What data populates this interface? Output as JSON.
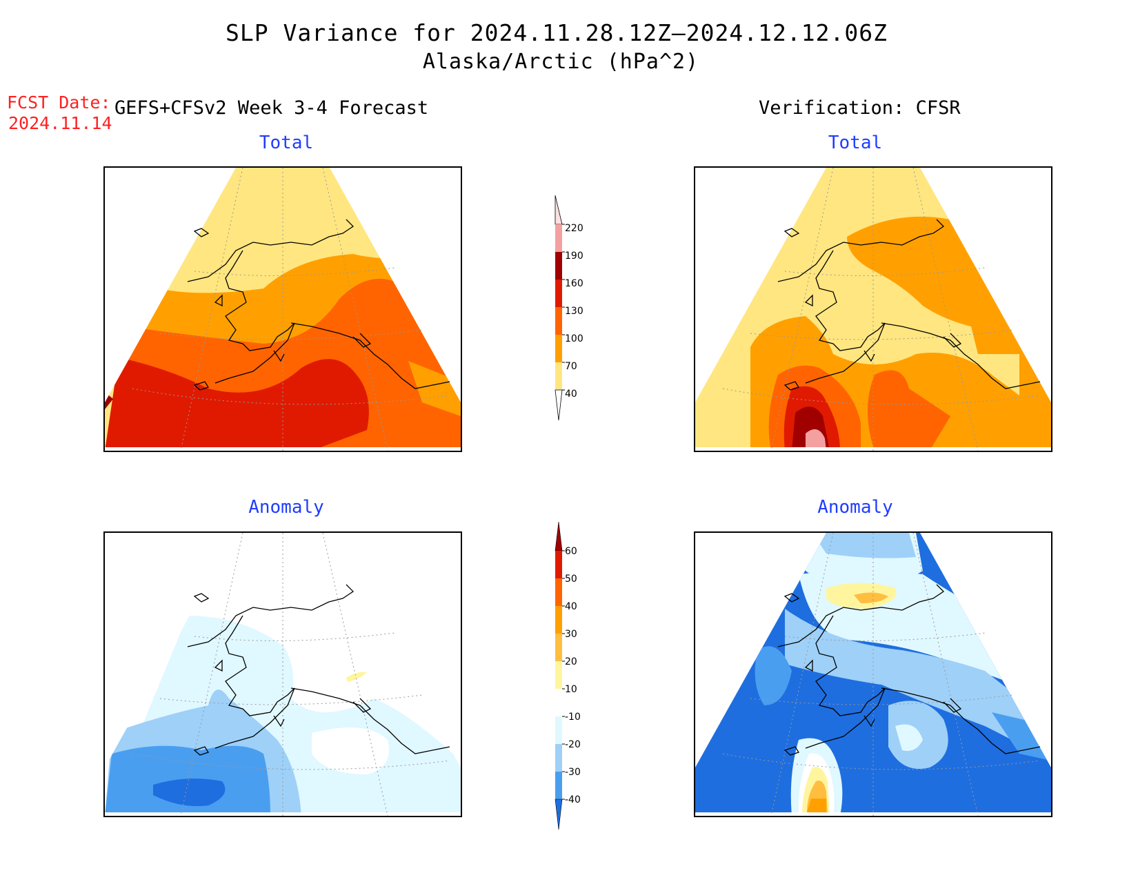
{
  "title": {
    "line1": "SLP Variance for 2024.11.28.12Z–2024.12.12.06Z",
    "line2": "Alaska/Arctic (hPa^2)"
  },
  "forecast_date": {
    "label": "FCST Date:",
    "value": "2024.11.14"
  },
  "headers": {
    "left": "GEFS+CFSv2 Week 3-4 Forecast",
    "right": "Verification: CFSR"
  },
  "panels": {
    "top_left": {
      "title": "Total"
    },
    "top_right": {
      "title": "Total"
    },
    "bottom_left": {
      "title": "Anomaly"
    },
    "bottom_right": {
      "title": "Anomaly"
    }
  },
  "colorbars": {
    "total": {
      "ticks": [
        "220",
        "190",
        "160",
        "130",
        "100",
        "70",
        "40"
      ],
      "colors": [
        "#fde0e0",
        "#f4a0a0",
        "#a00000",
        "#e01a00",
        "#ff6400",
        "#ffa000",
        "#ffe680"
      ]
    },
    "anomaly": {
      "ticks": [
        "60",
        "50",
        "40",
        "30",
        "20",
        "10",
        "-10",
        "-20",
        "-30",
        "-40"
      ],
      "colors": [
        "#a00000",
        "#e01a00",
        "#ff6400",
        "#ffa000",
        "#ffbe40",
        "#fff59e",
        "#ffffff",
        "#e0f8ff",
        "#9ed0f8",
        "#4a9ef0",
        "#1e6ee0"
      ]
    }
  },
  "colors": {
    "total_40_70": "#ffe680",
    "total_70_100": "#ffa000",
    "total_100_130": "#ff6400",
    "total_130_160": "#e01a00",
    "total_160_190": "#a00000",
    "total_190_220": "#f4a0a0",
    "anom_minus10_minus20": "#e0f8ff",
    "anom_minus20_minus30": "#9ed0f8",
    "anom_minus30_minus40": "#4a9ef0",
    "anom_below_minus40": "#1e6ee0",
    "anom_10_20": "#fff59e",
    "anom_20_30": "#ffbe40",
    "title_blue": "#1f3cff",
    "date_red": "#ff2020"
  }
}
